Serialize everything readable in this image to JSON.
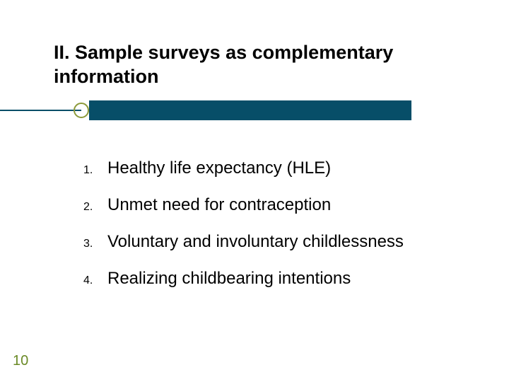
{
  "slide": {
    "title": "II. Sample surveys as complementary information",
    "items": [
      {
        "num": "1.",
        "text": "Healthy life expectancy (HLE)"
      },
      {
        "num": "2.",
        "text": "Unmet need for contraception"
      },
      {
        "num": "3.",
        "text": "Voluntary and involuntary childlessness"
      },
      {
        "num": "4.",
        "text": "Realizing childbearing intentions"
      }
    ],
    "page_number": "10"
  },
  "style": {
    "background_color": "#ffffff",
    "title_color": "#000000",
    "title_fontsize": 27,
    "title_fontweight": "bold",
    "decor_bar_color": "#074e68",
    "decor_line_color": "#074e68",
    "decor_circle_border_color": "#8c9a3a",
    "list_num_fontsize": 16,
    "list_text_fontsize": 24,
    "list_text_color": "#000000",
    "page_num_color": "#6a8a26",
    "page_num_fontsize": 20,
    "font_family": "Arial"
  }
}
